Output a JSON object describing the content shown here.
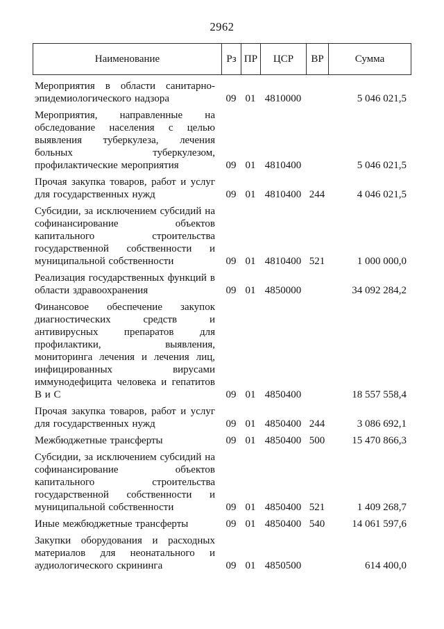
{
  "page": {
    "number": "2962"
  },
  "table": {
    "columns": [
      "Наименование",
      "Рз",
      "ПР",
      "ЦСР",
      "ВР",
      "Сумма"
    ],
    "rows": [
      {
        "name": "Мероприятия в области санитарно-эпидемиологического надзора",
        "rz": "09",
        "pr": "01",
        "csr": "4810000",
        "vr": "",
        "sum": "5 046 021,5"
      },
      {
        "name": "Мероприятия, направленные на обследование населения с целью выявления туберкулеза, лечения больных туберкулезом, профилактические мероприятия",
        "rz": "09",
        "pr": "01",
        "csr": "4810400",
        "vr": "",
        "sum": "5 046 021,5"
      },
      {
        "name": "Прочая закупка товаров, работ и услуг для государственных нужд",
        "rz": "09",
        "pr": "01",
        "csr": "4810400",
        "vr": "244",
        "sum": "4 046 021,5"
      },
      {
        "name": "Субсидии, за исключением субсидий на софинансирование объектов капитального строительства государственной собственности и муниципальной собственности",
        "rz": "09",
        "pr": "01",
        "csr": "4810400",
        "vr": "521",
        "sum": "1 000 000,0"
      },
      {
        "name": "Реализация государственных функций в области здравоохранения",
        "rz": "09",
        "pr": "01",
        "csr": "4850000",
        "vr": "",
        "sum": "34 092 284,2"
      },
      {
        "name": "Финансовое обеспечение закупок диагностических средств и антивирусных препаратов для профилактики, выявления, мониторинга лечения и лечения лиц, инфицированных вирусами иммунодефицита человека и гепатитов В и С",
        "rz": "09",
        "pr": "01",
        "csr": "4850400",
        "vr": "",
        "sum": "18 557 558,4"
      },
      {
        "name": "Прочая закупка товаров, работ и услуг для государственных нужд",
        "rz": "09",
        "pr": "01",
        "csr": "4850400",
        "vr": "244",
        "sum": "3 086 692,1"
      },
      {
        "name": "Межбюджетные трансферты",
        "rz": "09",
        "pr": "01",
        "csr": "4850400",
        "vr": "500",
        "sum": "15 470 866,3"
      },
      {
        "name": "Субсидии, за исключением субсидий на софинансирование объектов капитального строительства государственной собственности и муниципальной собственности",
        "rz": "09",
        "pr": "01",
        "csr": "4850400",
        "vr": "521",
        "sum": "1 409 268,7"
      },
      {
        "name": "Иные межбюджетные трансферты",
        "rz": "09",
        "pr": "01",
        "csr": "4850400",
        "vr": "540",
        "sum": "14 061 597,6"
      },
      {
        "name": "Закупки оборудования и расходных материалов для неонатального и аудиологического скрининга",
        "rz": "09",
        "pr": "01",
        "csr": "4850500",
        "vr": "",
        "sum": "614 400,0"
      }
    ]
  }
}
